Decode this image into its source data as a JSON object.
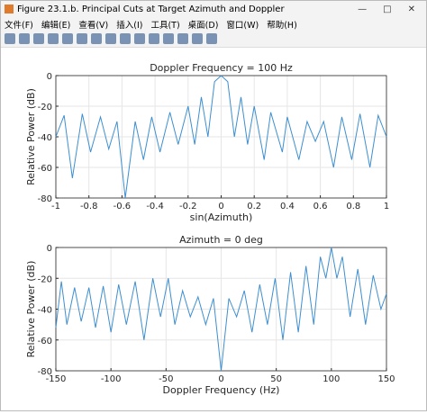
{
  "window": {
    "title": "Figure 23.1.b. Principal Cuts at Target Azimuth and Doppler",
    "menu": [
      "文件(F)",
      "编辑(E)",
      "查看(V)",
      "插入(I)",
      "工具(T)",
      "桌面(D)",
      "窗口(W)",
      "帮助(H)"
    ]
  },
  "chart_data": [
    {
      "type": "line",
      "title": "Doppler Frequency = 100 Hz",
      "x_label": "sin(Azimuth)",
      "y_label": "Relative Power (dB)",
      "color": "#3d8fd1",
      "grid": true,
      "x": [
        -1,
        -0.95,
        -0.9,
        -0.84,
        -0.79,
        -0.73,
        -0.68,
        -0.63,
        -0.58,
        -0.52,
        -0.47,
        -0.42,
        -0.37,
        -0.31,
        -0.26,
        -0.2,
        -0.16,
        -0.12,
        -0.08,
        -0.04,
        0,
        0.04,
        0.08,
        0.12,
        0.16,
        0.2,
        0.26,
        0.3,
        0.37,
        0.4,
        0.47,
        0.52,
        0.57,
        0.62,
        0.68,
        0.73,
        0.79,
        0.84,
        0.9,
        0.95,
        1
      ],
      "values": [
        -40,
        -26,
        -67,
        -25,
        -50,
        -27,
        -48,
        -30,
        -80,
        -30,
        -55,
        -27,
        -50,
        -24,
        -45,
        -20,
        -45,
        -14,
        -40,
        -4,
        0,
        -4,
        -40,
        -14,
        -45,
        -20,
        -55,
        -24,
        -50,
        -27,
        -55,
        -30,
        -43,
        -30,
        -60,
        -27,
        -55,
        -25,
        -60,
        -26,
        -40
      ],
      "xlim": [
        -1,
        1
      ],
      "ylim": [
        -80,
        0
      ],
      "xticks": [
        -1,
        -0.8,
        -0.6,
        -0.4,
        -0.2,
        0,
        0.2,
        0.4,
        0.6,
        0.8,
        1
      ],
      "yticks": [
        -80,
        -60,
        -40,
        -20,
        0
      ]
    },
    {
      "type": "line",
      "title": "Azimuth = 0 deg",
      "x_label": "Doppler Frequency (Hz)",
      "y_label": "Relative Power (dB)",
      "color": "#3d8fd1",
      "grid": true,
      "x": [
        -150,
        -145,
        -140,
        -133,
        -127,
        -120,
        -114,
        -107,
        -100,
        -93,
        -86,
        -78,
        -70,
        -62,
        -55,
        -48,
        -42,
        -35,
        -28,
        -21,
        -14,
        -7,
        0,
        7,
        14,
        21,
        28,
        35,
        42,
        49,
        56,
        63,
        70,
        77,
        84,
        90,
        95,
        100,
        105,
        110,
        117,
        124,
        131,
        138,
        145,
        150
      ],
      "values": [
        -52,
        -22,
        -50,
        -26,
        -48,
        -26,
        -52,
        -25,
        -55,
        -24,
        -50,
        -22,
        -60,
        -20,
        -45,
        -20,
        -50,
        -28,
        -45,
        -32,
        -50,
        -33,
        -80,
        -33,
        -45,
        -28,
        -55,
        -24,
        -50,
        -20,
        -60,
        -16,
        -55,
        -12,
        -50,
        -6,
        -20,
        0,
        -20,
        -6,
        -45,
        -14,
        -50,
        -18,
        -40,
        -30
      ],
      "xlim": [
        -150,
        150
      ],
      "ylim": [
        -80,
        0
      ],
      "xticks": [
        -150,
        -100,
        -50,
        0,
        50,
        100,
        150
      ],
      "yticks": [
        -80,
        -60,
        -40,
        -20,
        0
      ]
    }
  ]
}
